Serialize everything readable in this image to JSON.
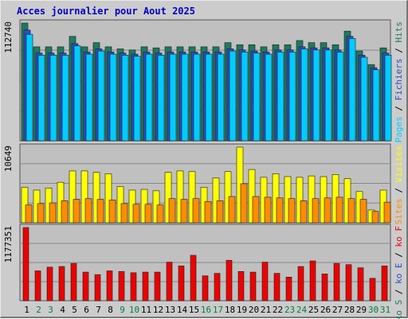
{
  "chart_data": {
    "type": "bar",
    "title": "Acces journalier pour Aout 2025",
    "title_color": "#0000cc",
    "categories": [
      "1",
      "2",
      "3",
      "4",
      "5",
      "6",
      "7",
      "8",
      "9",
      "10",
      "11",
      "12",
      "13",
      "14",
      "15",
      "16",
      "17",
      "18",
      "19",
      "20",
      "21",
      "22",
      "23",
      "24",
      "25",
      "26",
      "27",
      "28",
      "29",
      "30",
      "31"
    ],
    "weekend_days": [
      "2",
      "3",
      "9",
      "10",
      "16",
      "17",
      "23",
      "24",
      "30",
      "31"
    ],
    "colors": {
      "hits": "#1e7a5e",
      "files": "#2e4cc8",
      "pages": "#00ccff",
      "visits": "#ffff00",
      "sites": "#ff8c00",
      "kbytes": "#ee0000",
      "weekend_label": "#008040",
      "weekday_label": "#000000",
      "plot_bg": "#c0c0c0"
    },
    "panels": [
      {
        "ylabel_max": "112740",
        "ylim": [
          0,
          112740
        ],
        "legend": [
          {
            "label": "Hits",
            "color": "#1e7a5e"
          },
          {
            "label": "Fichiers",
            "color": "#2e4cc8"
          },
          {
            "label": "Pages",
            "color": "#00ccff"
          }
        ],
        "series": [
          {
            "name": "Hits",
            "values": [
              112740,
              90000,
              90000,
              90000,
              100000,
              90000,
              94000,
              90000,
              88000,
              87000,
              90000,
              89000,
              90000,
              90000,
              90000,
              90000,
              90000,
              94000,
              92000,
              92000,
              90000,
              92000,
              92000,
              96000,
              94000,
              94000,
              92000,
              105000,
              86000,
              73000,
              89000
            ]
          },
          {
            "name": "Fichiers",
            "values": [
              106000,
              84000,
              84000,
              84000,
              93000,
              85000,
              88000,
              85000,
              84000,
              83000,
              85000,
              84000,
              85000,
              85000,
              85000,
              85000,
              85000,
              88000,
              87000,
              86000,
              85000,
              87000,
              87000,
              90000,
              89000,
              89000,
              87000,
              100000,
              82000,
              70000,
              84000
            ]
          },
          {
            "name": "Pages",
            "values": [
              102000,
              82000,
              82000,
              82000,
              91000,
              83000,
              86000,
              83000,
              82000,
              81000,
              83000,
              82000,
              83000,
              83000,
              83000,
              83000,
              83000,
              86000,
              85000,
              84000,
              83000,
              85000,
              85000,
              88000,
              87000,
              87000,
              85000,
              98000,
              80000,
              68000,
              82000
            ]
          }
        ]
      },
      {
        "ylabel_max": "10649",
        "ylim": [
          0,
          10649
        ],
        "legend": [
          {
            "label": "Visites",
            "color": "#ffff00"
          },
          {
            "label": "Sites",
            "color": "#ff8c00"
          }
        ],
        "series": [
          {
            "name": "Visites",
            "values": [
              5000,
              4600,
              4900,
              5700,
              7300,
              7300,
              7100,
              6900,
              5100,
              4600,
              4700,
              4500,
              7100,
              7300,
              7200,
              5000,
              6300,
              7200,
              10649,
              7500,
              6400,
              6900,
              6500,
              6400,
              6600,
              6500,
              6800,
              6200,
              4400,
              1800,
              4600
            ]
          },
          {
            "name": "Sites",
            "values": [
              2500,
              2700,
              2800,
              3100,
              3300,
              3400,
              3300,
              3200,
              2700,
              2600,
              2600,
              2500,
              3400,
              3300,
              3400,
              3000,
              3100,
              3700,
              5500,
              3700,
              3600,
              3500,
              3400,
              3100,
              3400,
              3500,
              3600,
              3400,
              3300,
              1600,
              2900
            ]
          }
        ]
      },
      {
        "ylabel_max": "1177351",
        "ylim": [
          0,
          1177351
        ],
        "legend": [
          {
            "label": "ko F",
            "color": "#ee0000"
          },
          {
            "label": "ko E",
            "color": "#2e4cc8"
          },
          {
            "label": "ko S",
            "color": "#1e7a5e"
          }
        ],
        "series": [
          {
            "name": "ko F",
            "values": [
              1177351,
              480000,
              540000,
              550000,
              600000,
              460000,
              420000,
              480000,
              470000,
              450000,
              460000,
              460000,
              620000,
              560000,
              730000,
              400000,
              440000,
              650000,
              470000,
              460000,
              620000,
              440000,
              380000,
              550000,
              640000,
              430000,
              600000,
              580000,
              530000,
              360000,
              560000
            ]
          }
        ]
      }
    ]
  }
}
